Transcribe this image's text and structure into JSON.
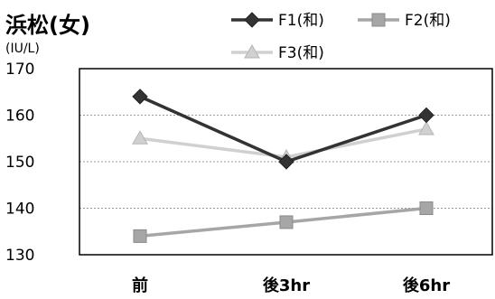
{
  "chart_data": {
    "type": "line",
    "title": "浜松(女)",
    "ylabel": "(IU/L)",
    "xlabel": "",
    "categories": [
      "前",
      "後3hr",
      "後6hr"
    ],
    "ylim": [
      130,
      170
    ],
    "yticks": [
      130,
      140,
      150,
      160,
      170
    ],
    "grid": true,
    "legend_position": "top-right",
    "series": [
      {
        "name": "F1(和)",
        "values": [
          164,
          150,
          160
        ],
        "color": "#333333",
        "marker": "diamond"
      },
      {
        "name": "F2(和)",
        "values": [
          134,
          137,
          140
        ],
        "color": "#a6a6a6",
        "marker": "square"
      },
      {
        "name": "F3(和)",
        "values": [
          155,
          151,
          157
        ],
        "color": "#d0d0d0",
        "marker": "triangle"
      }
    ]
  }
}
